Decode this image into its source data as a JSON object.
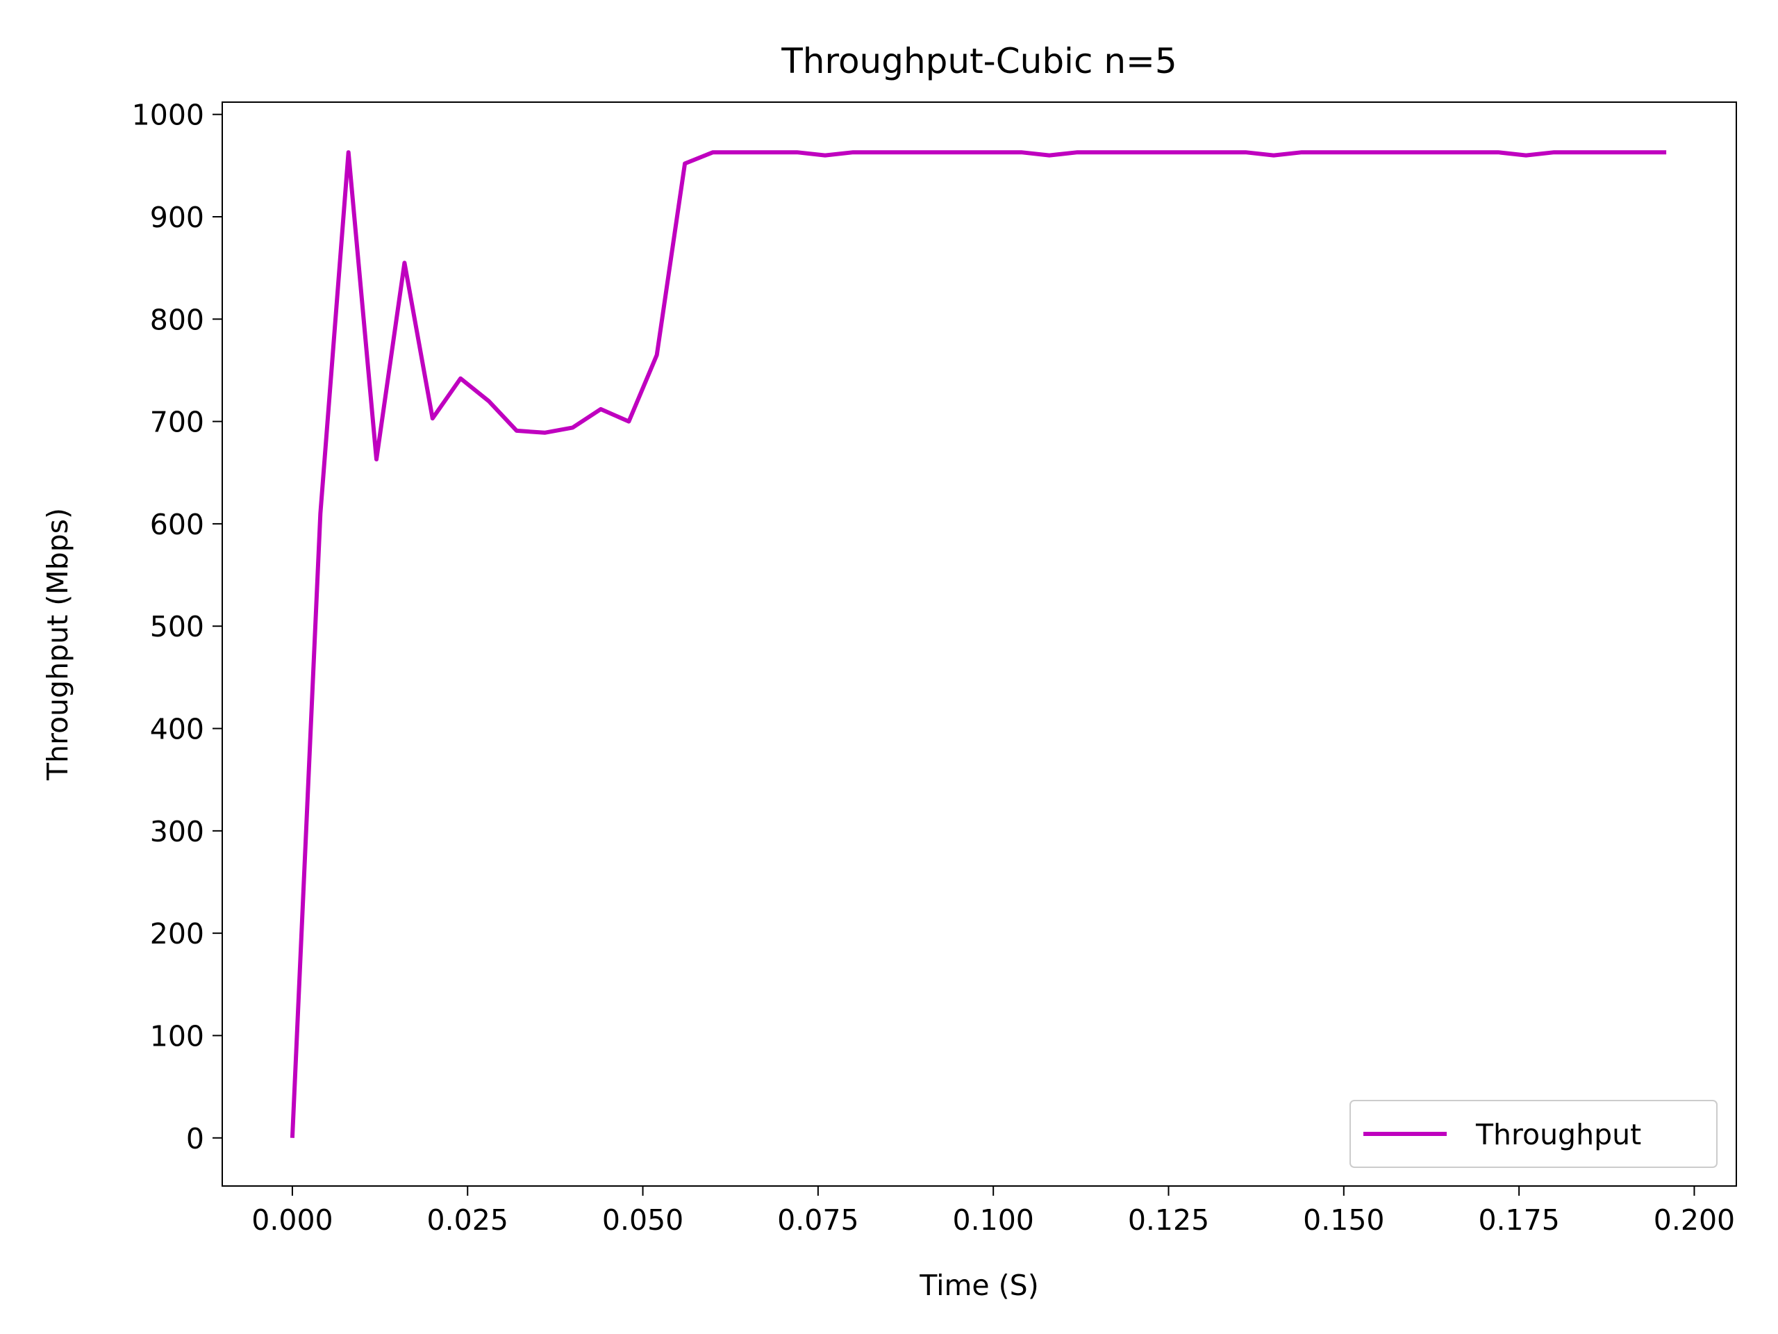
{
  "chart_data": {
    "type": "line",
    "title": "Throughput-Cubic n=5",
    "xlabel": "Time (S)",
    "ylabel": "Throughput (Mbps)",
    "xlim": [
      -0.01,
      0.206
    ],
    "ylim": [
      -47,
      1012
    ],
    "xticks": [
      0.0,
      0.025,
      0.05,
      0.075,
      0.1,
      0.125,
      0.15,
      0.175,
      0.2
    ],
    "xtick_labels": [
      "0.000",
      "0.025",
      "0.050",
      "0.075",
      "0.100",
      "0.125",
      "0.150",
      "0.175",
      "0.200"
    ],
    "yticks": [
      0,
      100,
      200,
      300,
      400,
      500,
      600,
      700,
      800,
      900,
      1000
    ],
    "ytick_labels": [
      "0",
      "100",
      "200",
      "300",
      "400",
      "500",
      "600",
      "700",
      "800",
      "900",
      "1000"
    ],
    "grid": false,
    "legend_position": "bottom-right",
    "series": [
      {
        "name": "Throughput",
        "color": "#bf00bf",
        "x": [
          0.0,
          0.004,
          0.008,
          0.012,
          0.016,
          0.02,
          0.024,
          0.028,
          0.032,
          0.036,
          0.04,
          0.044,
          0.048,
          0.052,
          0.056,
          0.06,
          0.064,
          0.068,
          0.072,
          0.076,
          0.08,
          0.084,
          0.088,
          0.092,
          0.096,
          0.1,
          0.104,
          0.108,
          0.112,
          0.116,
          0.12,
          0.124,
          0.128,
          0.132,
          0.136,
          0.14,
          0.144,
          0.148,
          0.152,
          0.156,
          0.16,
          0.164,
          0.168,
          0.172,
          0.176,
          0.18,
          0.184,
          0.188,
          0.192,
          0.196
        ],
        "values": [
          0,
          610,
          963,
          663,
          855,
          703,
          742,
          720,
          691,
          689,
          694,
          712,
          700,
          765,
          952,
          963,
          963,
          963,
          963,
          960,
          963,
          963,
          963,
          963,
          963,
          963,
          963,
          960,
          963,
          963,
          963,
          963,
          963,
          963,
          963,
          960,
          963,
          963,
          963,
          963,
          963,
          963,
          963,
          963,
          960,
          963,
          963,
          963,
          963,
          963
        ]
      }
    ]
  }
}
